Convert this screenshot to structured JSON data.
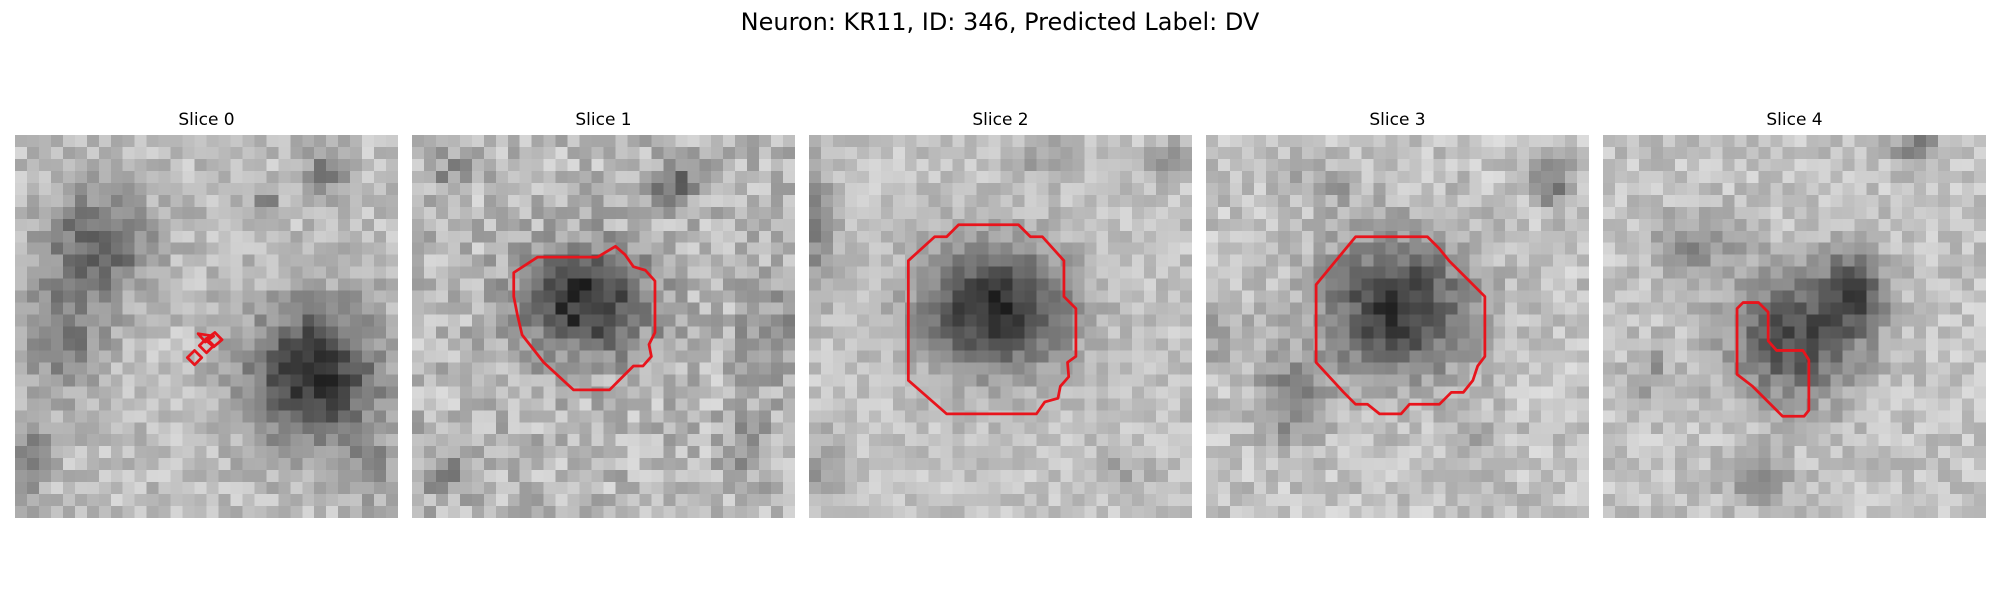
{
  "figure": {
    "title": "Neuron: KR11, ID: 346, Predicted Label: DV",
    "panels": [
      {
        "title": "Slice 0"
      },
      {
        "title": "Slice 1"
      },
      {
        "title": "Slice 2"
      },
      {
        "title": "Slice 3"
      },
      {
        "title": "Slice 4"
      }
    ]
  },
  "colors": {
    "contour": "#e8141c",
    "background": "#ffffff"
  }
}
